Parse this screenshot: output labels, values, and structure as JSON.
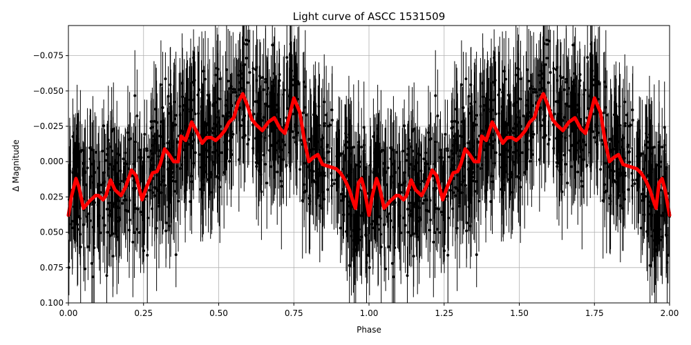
{
  "chart_data": {
    "type": "scatter",
    "title": "Light curve of ASCC 1531509",
    "xlabel": "Phase",
    "ylabel": "Δ Magnitude",
    "xlim": [
      0.0,
      2.0
    ],
    "ylim": [
      0.1,
      -0.0963
    ],
    "y_inverted": true,
    "grid": true,
    "legend": null,
    "x_ticks": [
      "0.00",
      "0.25",
      "0.50",
      "0.75",
      "1.00",
      "1.25",
      "1.50",
      "1.75",
      "2.00"
    ],
    "y_ticks": [
      "−0.075",
      "−0.050",
      "−0.025",
      "0.000",
      "0.025",
      "0.050",
      "0.075",
      "0.100"
    ],
    "series": [
      {
        "name": "observations",
        "style": "black points with vertical error bars",
        "color": "#000000",
        "description": "dense noisy scatter, roughly ±0.05 mag around the model curve, errorbars ~0.02–0.05 mag, phase-folded and repeated over 2 cycles"
      },
      {
        "name": "smoothed model",
        "style": "thick line",
        "color": "#ff0000",
        "x": [
          0.0,
          0.01,
          0.025,
          0.035,
          0.05,
          0.07,
          0.09,
          0.1,
          0.115,
          0.125,
          0.14,
          0.155,
          0.175,
          0.19,
          0.21,
          0.225,
          0.245,
          0.26,
          0.28,
          0.295,
          0.305,
          0.32,
          0.335,
          0.35,
          0.365,
          0.375,
          0.39,
          0.41,
          0.43,
          0.445,
          0.46,
          0.475,
          0.49,
          0.505,
          0.52,
          0.535,
          0.55,
          0.565,
          0.58,
          0.595,
          0.61,
          0.625,
          0.645,
          0.665,
          0.685,
          0.705,
          0.72,
          0.735,
          0.75,
          0.77,
          0.785,
          0.8,
          0.815,
          0.83,
          0.845,
          0.86,
          0.875,
          0.89,
          0.905,
          0.92,
          0.935,
          0.945,
          0.955,
          0.965,
          0.975,
          0.985,
          1.0
        ],
        "y": [
          0.038,
          0.025,
          0.012,
          0.018,
          0.033,
          0.028,
          0.024,
          0.024,
          0.027,
          0.024,
          0.013,
          0.02,
          0.024,
          0.018,
          0.006,
          0.01,
          0.027,
          0.018,
          0.008,
          0.007,
          0.002,
          -0.009,
          -0.005,
          0.0,
          0.0,
          -0.018,
          -0.015,
          -0.028,
          -0.02,
          -0.013,
          -0.017,
          -0.017,
          -0.015,
          -0.018,
          -0.022,
          -0.028,
          -0.031,
          -0.042,
          -0.048,
          -0.04,
          -0.03,
          -0.026,
          -0.022,
          -0.028,
          -0.031,
          -0.023,
          -0.02,
          -0.032,
          -0.045,
          -0.035,
          -0.015,
          0.0,
          -0.003,
          -0.005,
          0.002,
          0.003,
          0.004,
          0.005,
          0.008,
          0.013,
          0.02,
          0.027,
          0.033,
          0.015,
          0.012,
          0.02,
          0.038
        ]
      }
    ]
  }
}
